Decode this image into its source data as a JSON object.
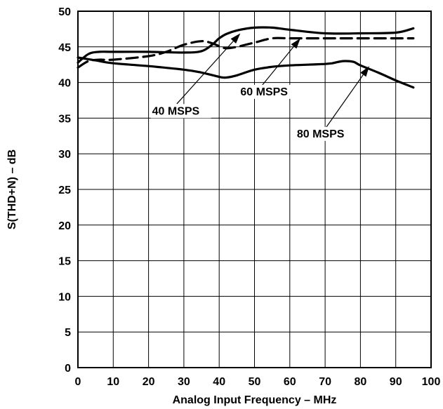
{
  "chart_data": {
    "type": "line",
    "title": "",
    "xlabel": "Analog Input Frequency – MHz",
    "ylabel": "S(THD+N) – dB",
    "xlim": [
      0,
      100
    ],
    "ylim": [
      0,
      50
    ],
    "xticks": [
      "0",
      "10",
      "20",
      "30",
      "40",
      "50",
      "60",
      "70",
      "80",
      "90",
      "100"
    ],
    "yticks": [
      "0",
      "5",
      "10",
      "15",
      "20",
      "25",
      "30",
      "35",
      "40",
      "45",
      "50"
    ],
    "grid": true,
    "legend": "none",
    "series": [
      {
        "name": "40 MSPS",
        "style": "solid",
        "x": [
          0,
          3,
          6,
          10,
          20,
          30,
          35,
          38,
          40,
          42,
          45,
          50,
          55,
          60,
          70,
          80,
          90,
          95
        ],
        "y": [
          42.8,
          44.0,
          44.3,
          44.3,
          44.3,
          44.2,
          44.4,
          45.3,
          46.2,
          46.8,
          47.3,
          47.7,
          47.7,
          47.4,
          46.9,
          46.9,
          47.0,
          47.6
        ]
      },
      {
        "name": "60 MSPS",
        "style": "dashed",
        "x": [
          0,
          3,
          6,
          10,
          20,
          25,
          30,
          35,
          38,
          40,
          42,
          45,
          50,
          55,
          60,
          70,
          80,
          90,
          95
        ],
        "y": [
          42.1,
          43.0,
          43.2,
          43.2,
          43.7,
          44.3,
          45.3,
          45.8,
          45.5,
          45.1,
          44.8,
          45.0,
          45.6,
          46.2,
          46.2,
          46.2,
          46.2,
          46.2,
          46.2
        ]
      },
      {
        "name": "80 MSPS",
        "style": "solid",
        "x": [
          0,
          5,
          10,
          20,
          30,
          35,
          40,
          42,
          45,
          50,
          55,
          60,
          65,
          70,
          72,
          75,
          78,
          80,
          85,
          90,
          95
        ],
        "y": [
          43.5,
          43.1,
          42.7,
          42.3,
          41.8,
          41.4,
          40.8,
          40.7,
          41.0,
          41.8,
          42.2,
          42.4,
          42.5,
          42.6,
          42.7,
          43.0,
          42.9,
          42.4,
          41.4,
          40.3,
          39.3
        ]
      }
    ],
    "annotations": [
      {
        "text": "40 MSPS",
        "points_to_series": "40 MSPS",
        "text_pos": [
          21,
          35.5
        ],
        "from": [
          28,
          37
        ],
        "to": [
          46,
          46.9
        ]
      },
      {
        "text": "60 MSPS",
        "points_to_series": "60 MSPS",
        "text_pos": [
          46,
          38.2
        ],
        "from": [
          52,
          39.5
        ],
        "to": [
          63,
          46.2
        ]
      },
      {
        "text": "80 MSPS",
        "points_to_series": "80 MSPS",
        "text_pos": [
          62,
          32.3
        ],
        "from": [
          70,
          33.5
        ],
        "to": [
          82.5,
          42.3
        ]
      }
    ]
  }
}
